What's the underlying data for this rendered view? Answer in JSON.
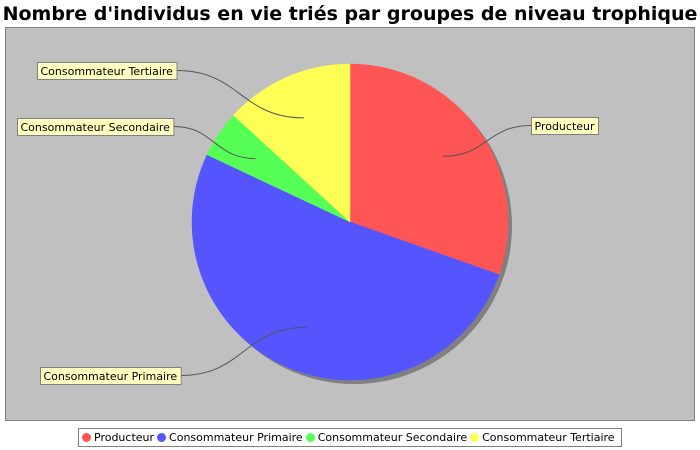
{
  "chart_data": {
    "type": "pie",
    "title": "Nombre d'individus en vie triés par groupes de niveau trophique",
    "categories": [
      "Producteur",
      "Consommateur Primaire",
      "Consommateur Secondaire",
      "Consommateur Tertiaire"
    ],
    "values": [
      30.4,
      51.6,
      4.8,
      13.2
    ],
    "colors": [
      "#ff5555",
      "#5555ff",
      "#55ff55",
      "#ffff55"
    ],
    "legend_position": "bottom",
    "plot_background": "#c0c0c0"
  },
  "legend": {
    "items": [
      {
        "label": "Producteur",
        "color": "#ff5555"
      },
      {
        "label": "Consommateur Primaire",
        "color": "#5555ff"
      },
      {
        "label": "Consommateur Secondaire",
        "color": "#55ff55"
      },
      {
        "label": "Consommateur Tertiaire",
        "color": "#ffff55"
      }
    ]
  }
}
